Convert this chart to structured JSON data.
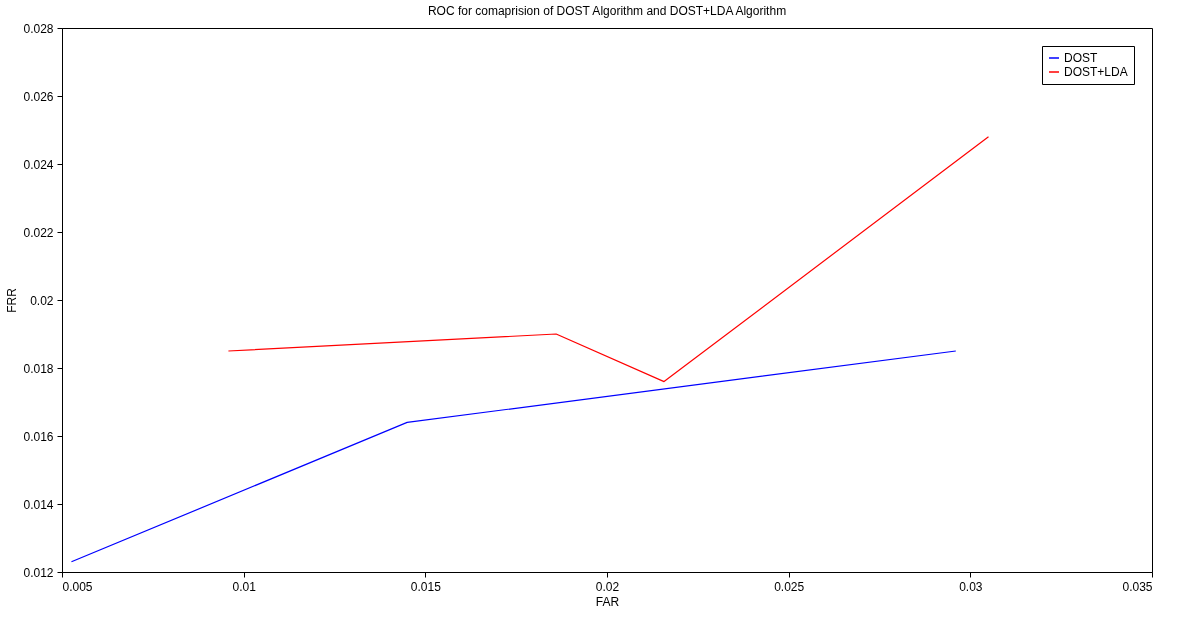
{
  "chart_data": {
    "type": "line",
    "title": "ROC for comaprision of DOST Algorithm and DOST+LDA Algorithm",
    "xlabel": "FAR",
    "ylabel": "FRR",
    "xlim": [
      0.005,
      0.035
    ],
    "xticks": [
      0.005,
      0.01,
      0.015,
      0.02,
      0.025,
      0.03,
      0.035
    ],
    "ylim": [
      0.012,
      0.028
    ],
    "yticks": [
      0.012,
      0.014,
      0.016,
      0.018,
      0.02,
      0.022,
      0.024,
      0.026,
      0.028
    ],
    "grid": false,
    "legend": "top right",
    "marker": "none",
    "line_style": "solid",
    "series": [
      {
        "name": "DOST",
        "color": "#0000ff",
        "x": [
          0.00526,
          0.0145,
          0.0296
        ],
        "values": [
          0.0123,
          0.0164,
          0.0185
        ]
      },
      {
        "name": "DOST+LDA",
        "color": "#ff0000",
        "x": [
          0.00958,
          0.0186,
          0.02157,
          0.0305
        ],
        "values": [
          0.0185,
          0.019,
          0.0176,
          0.0248
        ]
      }
    ]
  }
}
